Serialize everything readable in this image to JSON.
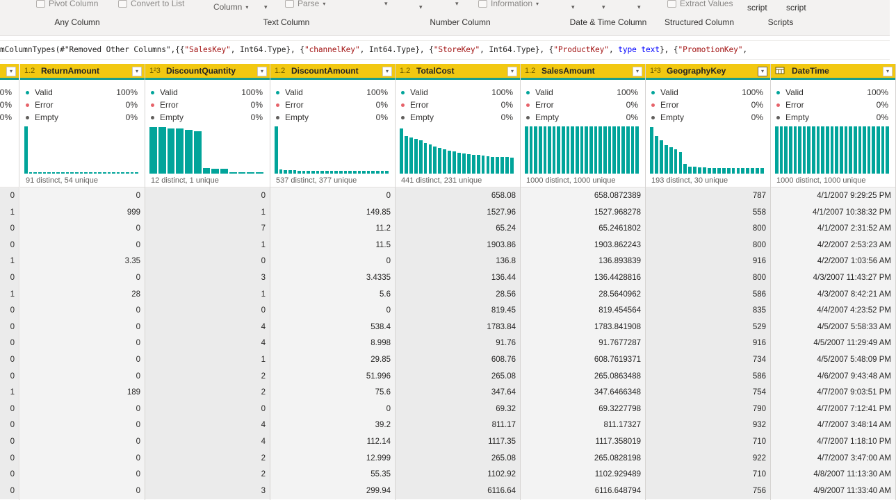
{
  "ribbon": {
    "items": [
      {
        "label": "Pivot Column",
        "caret": false
      },
      {
        "label": "Convert to List",
        "caret": false
      },
      {
        "label": "Column",
        "caret": true
      },
      {
        "label": "Parse",
        "caret": true
      },
      {
        "label": "Information",
        "caret": true
      },
      {
        "label": "Extract Values",
        "caret": false
      }
    ],
    "script_labels": [
      "script",
      "script"
    ],
    "groups": [
      "Any Column",
      "Text Column",
      "Number Column",
      "Date & Time Column",
      "Structured Column",
      "Scripts"
    ]
  },
  "formula": {
    "p1": "mColumnTypes(#\"Removed Other Columns\",{{",
    "s1": "\"SalesKey\"",
    "p2": ", Int64.Type}, {",
    "s2": "\"channelKey\"",
    "p3": ", Int64.Type}, {",
    "s3": "\"StoreKey\"",
    "p4": ", Int64.Type}, {",
    "s4": "\"ProductKey\"",
    "p5": ", ",
    "k1": "type text",
    "p6": "}, {",
    "s5": "\"PromotionKey\"",
    "p7": ","
  },
  "colors": {
    "header": "#f2c811",
    "histogram": "#01a49a",
    "valid": "#01a49a",
    "error": "#e6636a",
    "empty": "#605e5c"
  },
  "columns": [
    {
      "name": "",
      "type_icon": "",
      "valid_label": "",
      "valid_pct": "00%",
      "error_label": "",
      "error_pct": "0%",
      "empty_label": "",
      "empty_pct": "0%",
      "distinct": "",
      "bars": [],
      "cells": [
        "0",
        "1",
        "0",
        "0",
        "1",
        "0",
        "1",
        "0",
        "0",
        "0",
        "0",
        "0",
        "1",
        "0",
        "0",
        "0",
        "0",
        "0",
        "0"
      ]
    },
    {
      "name": "ReturnAmount",
      "type_icon": "1.2",
      "valid_label": "Valid",
      "valid_pct": "100%",
      "error_label": "Error",
      "error_pct": "0%",
      "empty_label": "Empty",
      "empty_pct": "0%",
      "distinct": "91 distinct, 54 unique",
      "bars": [
        1.0,
        0.03,
        0.03,
        0.03,
        0.03,
        0.03,
        0.03,
        0.03,
        0.03,
        0.03,
        0.03,
        0.03,
        0.03,
        0.03,
        0.03,
        0.03,
        0.03,
        0.03,
        0.03,
        0.03,
        0.03,
        0.03,
        0.03,
        0.03,
        0.03
      ],
      "cells": [
        "0",
        "999",
        "0",
        "0",
        "3.35",
        "0",
        "28",
        "0",
        "0",
        "0",
        "0",
        "0",
        "189",
        "0",
        "0",
        "0",
        "0",
        "0",
        "0"
      ]
    },
    {
      "name": "DiscountQuantity",
      "type_icon": "1²3",
      "valid_label": "Valid",
      "valid_pct": "100%",
      "error_label": "Error",
      "error_pct": "0%",
      "empty_label": "Empty",
      "empty_pct": "0%",
      "distinct": "12 distinct, 1 unique",
      "bars": [
        0.98,
        0.98,
        0.96,
        0.95,
        0.93,
        0.9,
        0.12,
        0.11,
        0.1,
        0.03,
        0.03,
        0.03,
        0.03
      ],
      "cells": [
        "0",
        "1",
        "7",
        "1",
        "0",
        "3",
        "1",
        "0",
        "4",
        "4",
        "1",
        "2",
        "2",
        "0",
        "4",
        "4",
        "2",
        "2",
        "3"
      ]
    },
    {
      "name": "DiscountAmount",
      "type_icon": "1.2",
      "valid_label": "Valid",
      "valid_pct": "100%",
      "error_label": "Error",
      "error_pct": "0%",
      "empty_label": "Empty",
      "empty_pct": "0%",
      "distinct": "537 distinct, 377 unique",
      "bars": [
        1.0,
        0.09,
        0.08,
        0.07,
        0.07,
        0.06,
        0.06,
        0.06,
        0.06,
        0.06,
        0.06,
        0.06,
        0.06,
        0.06,
        0.06,
        0.06,
        0.06,
        0.06,
        0.06,
        0.06,
        0.06,
        0.06,
        0.06,
        0.06,
        0.06
      ],
      "cells": [
        "0",
        "149.85",
        "11.2",
        "11.5",
        "0",
        "3.4335",
        "5.6",
        "0",
        "538.4",
        "8.998",
        "29.85",
        "51.996",
        "75.6",
        "0",
        "39.2",
        "112.14",
        "12.999",
        "55.35",
        "299.94"
      ]
    },
    {
      "name": "TotalCost",
      "type_icon": "1.2",
      "valid_label": "Valid",
      "valid_pct": "100%",
      "error_label": "Error",
      "error_pct": "0%",
      "empty_label": "Empty",
      "empty_pct": "0%",
      "distinct": "441 distinct, 231 unique",
      "bars": [
        0.95,
        0.8,
        0.76,
        0.73,
        0.7,
        0.65,
        0.62,
        0.58,
        0.55,
        0.52,
        0.49,
        0.47,
        0.44,
        0.42,
        0.41,
        0.4,
        0.39,
        0.38,
        0.37,
        0.36,
        0.36,
        0.35,
        0.35,
        0.34
      ],
      "cells": [
        "658.08",
        "1527.96",
        "65.24",
        "1903.86",
        "136.8",
        "136.44",
        "28.56",
        "819.45",
        "1783.84",
        "91.76",
        "608.76",
        "265.08",
        "347.64",
        "69.32",
        "811.17",
        "1117.35",
        "265.08",
        "1102.92",
        "6116.64"
      ]
    },
    {
      "name": "SalesAmount",
      "type_icon": "1.2",
      "valid_label": "Valid",
      "valid_pct": "100%",
      "error_label": "Error",
      "error_pct": "0%",
      "empty_label": "Empty",
      "empty_pct": "0%",
      "distinct": "1000 distinct, 1000 unique",
      "bars": [
        1,
        1,
        1,
        1,
        1,
        1,
        1,
        1,
        1,
        1,
        1,
        1,
        1,
        1,
        1,
        1,
        1,
        1,
        1,
        1,
        1,
        1,
        1,
        1,
        1
      ],
      "cells": [
        "658.0872389",
        "1527.968278",
        "65.2461802",
        "1903.862243",
        "136.893839",
        "136.4428816",
        "28.5640962",
        "819.454564",
        "1783.841908",
        "91.7677287",
        "608.7619371",
        "265.0863488",
        "347.6466348",
        "69.3227798",
        "811.17327",
        "1117.358019",
        "265.0828198",
        "1102.929489",
        "6116.648794"
      ]
    },
    {
      "name": "GeographyKey",
      "type_icon": "1²3",
      "valid_label": "Valid",
      "valid_pct": "100%",
      "error_label": "Error",
      "error_pct": "0%",
      "empty_label": "Empty",
      "empty_pct": "0%",
      "distinct": "193 distinct, 30 unique",
      "bars": [
        0.98,
        0.8,
        0.7,
        0.6,
        0.56,
        0.52,
        0.45,
        0.2,
        0.15,
        0.14,
        0.13,
        0.13,
        0.12,
        0.12,
        0.12,
        0.12,
        0.12,
        0.12,
        0.12,
        0.12,
        0.12,
        0.12,
        0.12,
        0.12
      ],
      "cells": [
        "787",
        "558",
        "800",
        "800",
        "916",
        "800",
        "586",
        "835",
        "529",
        "916",
        "734",
        "586",
        "754",
        "790",
        "932",
        "710",
        "922",
        "710",
        "756"
      ]
    },
    {
      "name": "DateTime",
      "type_icon": "cal",
      "valid_label": "Valid",
      "valid_pct": "100%",
      "error_label": "Error",
      "error_pct": "0%",
      "empty_label": "Empty",
      "empty_pct": "0%",
      "distinct": "1000 distinct, 1000 unique",
      "bars": [
        1,
        1,
        1,
        1,
        1,
        1,
        1,
        1,
        1,
        1,
        1,
        1,
        1,
        1,
        1,
        1,
        1,
        1,
        1,
        1,
        1,
        1,
        1,
        1,
        1
      ],
      "cells": [
        "4/1/2007 9:29:25 PM",
        "4/1/2007 10:38:32 PM",
        "4/1/2007 2:31:52 AM",
        "4/2/2007 2:53:23 AM",
        "4/2/2007 1:03:56 AM",
        "4/3/2007 11:43:27 PM",
        "4/3/2007 8:42:21 AM",
        "4/4/2007 4:23:52 PM",
        "4/5/2007 5:58:33 AM",
        "4/5/2007 11:29:49 AM",
        "4/5/2007 5:48:09 PM",
        "4/6/2007 9:43:48 AM",
        "4/7/2007 9:03:51 PM",
        "4/7/2007 7:12:41 PM",
        "4/7/2007 3:48:14 AM",
        "4/7/2007 1:18:10 PM",
        "4/7/2007 3:47:00 AM",
        "4/8/2007 11:13:30 AM",
        "4/9/2007 11:33:40 AM"
      ]
    }
  ]
}
